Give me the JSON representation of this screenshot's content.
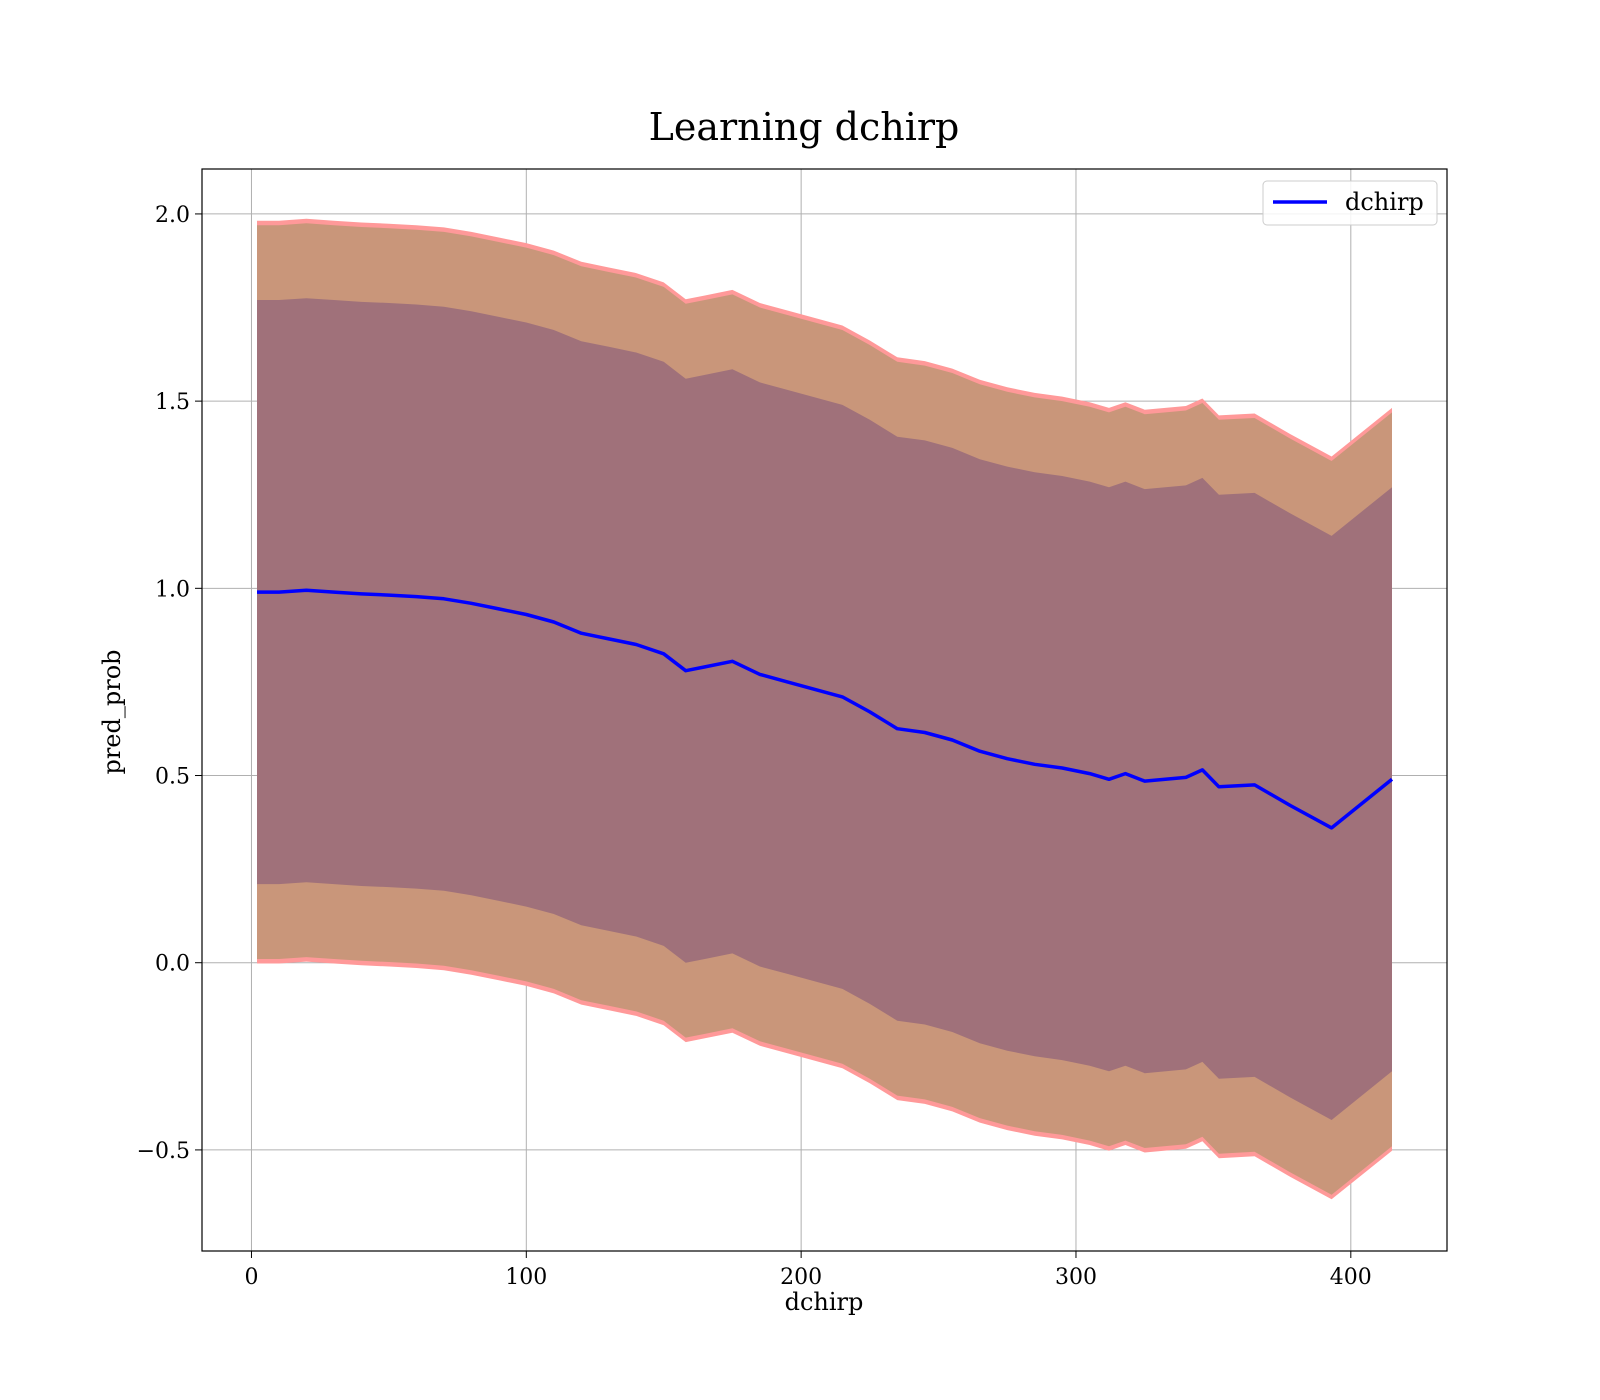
{
  "colors": {
    "line": "#0000ff",
    "outer_band_edge": "#ff9999",
    "outer_band_fill": "#c9967a",
    "inner_band_fill": "#a0717a",
    "grid": "#b0b0b0"
  },
  "chart_data": {
    "type": "line",
    "title": "Learning dchirp",
    "xlabel": "dchirp",
    "ylabel": "pred_prob",
    "xlim": [
      -18,
      435
    ],
    "ylim": [
      -0.77,
      2.12
    ],
    "xticks": [
      0,
      100,
      200,
      300,
      400
    ],
    "yticks": [
      -0.5,
      0.0,
      0.5,
      1.0,
      1.5,
      2.0
    ],
    "xtick_labels": [
      "0",
      "100",
      "200",
      "300",
      "400"
    ],
    "ytick_labels": [
      "−0.5",
      "0.0",
      "0.5",
      "1.0",
      "1.5",
      "2.0"
    ],
    "grid": true,
    "legend": {
      "position": "top-right",
      "entries": [
        "dchirp"
      ]
    },
    "series": [
      {
        "name": "dchirp",
        "x": [
          2,
          10,
          20,
          30,
          40,
          50,
          60,
          70,
          80,
          90,
          100,
          110,
          120,
          130,
          140,
          150,
          158,
          165,
          175,
          185,
          195,
          205,
          215,
          225,
          235,
          245,
          255,
          265,
          275,
          285,
          295,
          305,
          312,
          318,
          325,
          340,
          346,
          352,
          365,
          378,
          393,
          415
        ],
        "y": [
          0.99,
          0.99,
          0.995,
          0.99,
          0.985,
          0.982,
          0.978,
          0.972,
          0.96,
          0.945,
          0.93,
          0.91,
          0.88,
          0.865,
          0.85,
          0.825,
          0.78,
          0.79,
          0.805,
          0.77,
          0.75,
          0.73,
          0.71,
          0.67,
          0.625,
          0.615,
          0.595,
          0.565,
          0.545,
          0.53,
          0.52,
          0.505,
          0.49,
          0.505,
          0.485,
          0.495,
          0.515,
          0.47,
          0.475,
          0.42,
          0.36,
          0.49
        ]
      }
    ],
    "bands": {
      "inner_std": 0.78,
      "outer_std": 0.98,
      "edge_width": 0.012
    }
  }
}
